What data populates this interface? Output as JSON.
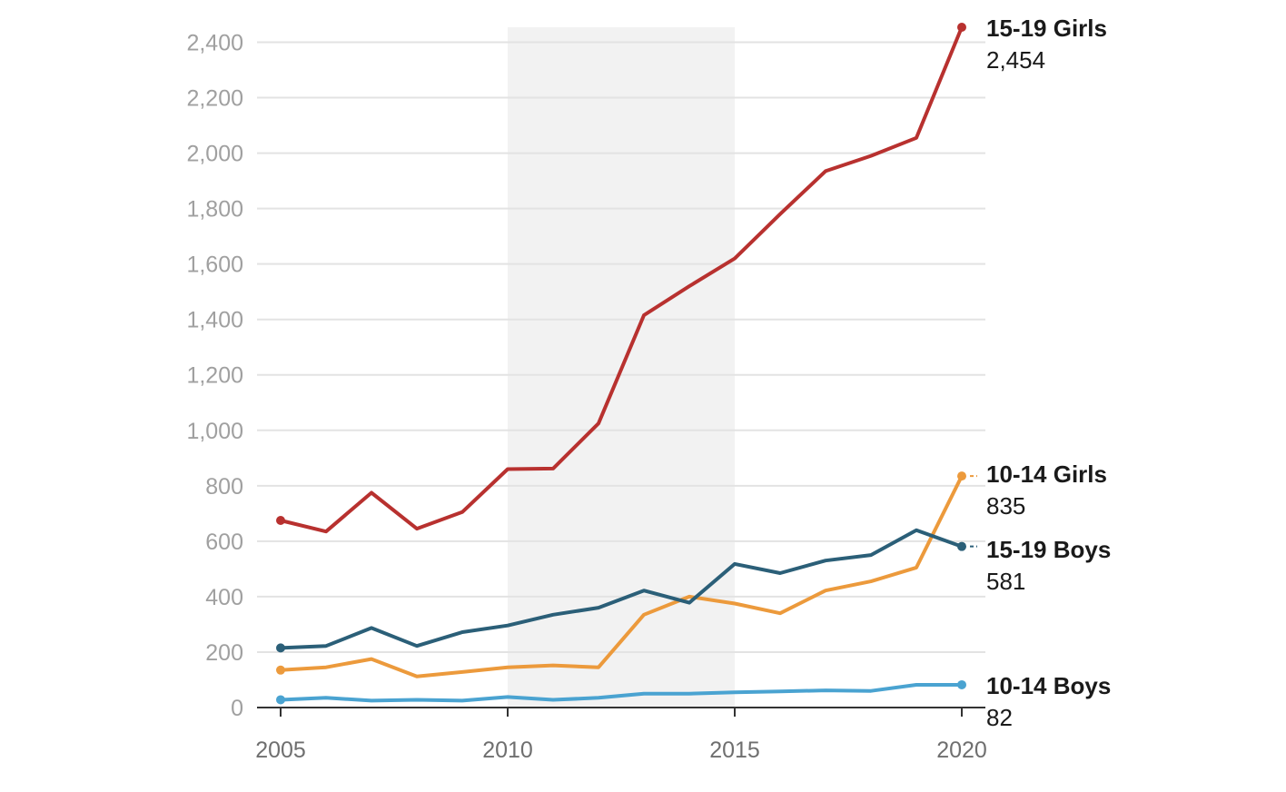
{
  "chart_data": {
    "type": "line",
    "x": [
      2005,
      2006,
      2007,
      2008,
      2009,
      2010,
      2011,
      2012,
      2013,
      2014,
      2015,
      2016,
      2017,
      2018,
      2019,
      2020
    ],
    "x_ticks": [
      2005,
      2010,
      2015,
      2020
    ],
    "x_tick_labels": [
      "2005",
      "2010",
      "2015",
      "2020"
    ],
    "y_ticks": [
      0,
      200,
      400,
      600,
      800,
      1000,
      1200,
      1400,
      1600,
      1800,
      2000,
      2200,
      2400
    ],
    "y_tick_labels": [
      "0",
      "200",
      "400",
      "600",
      "800",
      "1,000",
      "1,200",
      "1,400",
      "1,600",
      "1,800",
      "2,000",
      "2,200",
      "2,400"
    ],
    "ylim": [
      0,
      2454
    ],
    "xlim": [
      2005,
      2020
    ],
    "grid": true,
    "shaded_region": [
      2010,
      2015
    ],
    "series": [
      {
        "name": "15-19 Girls",
        "end_label": "2,454",
        "color": "#b8312f",
        "values": [
          675,
          635,
          775,
          645,
          705,
          860,
          862,
          1025,
          1415,
          1520,
          1620,
          1780,
          1935,
          1990,
          2055,
          2454
        ]
      },
      {
        "name": "10-14 Girls",
        "end_label": "835",
        "color": "#ec9a3c",
        "values": [
          135,
          145,
          175,
          112,
          128,
          145,
          152,
          145,
          335,
          400,
          375,
          340,
          422,
          455,
          505,
          835
        ]
      },
      {
        "name": "15-19 Boys",
        "end_label": "581",
        "color": "#2b5f78",
        "values": [
          215,
          222,
          287,
          222,
          272,
          296,
          335,
          360,
          422,
          378,
          518,
          485,
          530,
          550,
          640,
          581
        ]
      },
      {
        "name": "10-14 Boys",
        "end_label": "82",
        "color": "#4aa3d1",
        "values": [
          28,
          35,
          25,
          28,
          25,
          38,
          28,
          35,
          50,
          50,
          55,
          58,
          62,
          60,
          82,
          82
        ]
      }
    ]
  }
}
